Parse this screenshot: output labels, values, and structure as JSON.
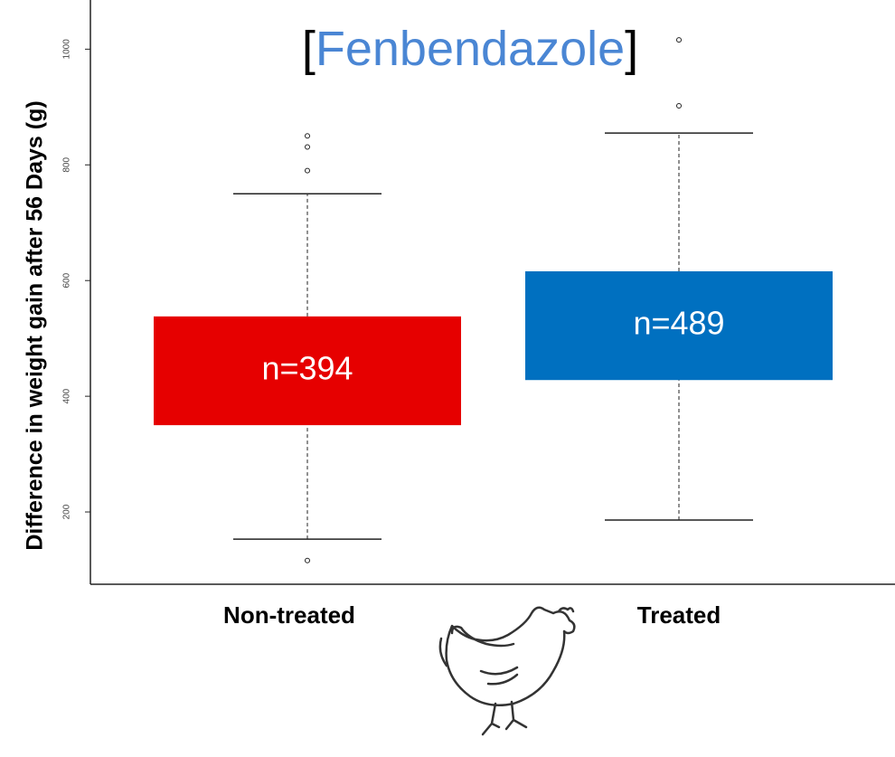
{
  "chart_data": {
    "type": "box",
    "title": "[Fenbendazole]",
    "y_label": "Difference in weight gain after 56 Days (g)",
    "categories": [
      "Non-treated",
      "Treated"
    ],
    "boxes": [
      {
        "whisker_low": 153,
        "q1": 350,
        "q3": 538,
        "whisker_high": 750,
        "outliers": [
          116,
          790,
          831,
          850
        ],
        "label": "n=394",
        "color": "#e60000"
      },
      {
        "whisker_low": 186,
        "q1": 428,
        "q3": 616,
        "whisker_high": 855,
        "outliers": [
          902,
          1016
        ],
        "label": "n=489",
        "color": "#0070c0"
      }
    ],
    "ylim": [
      75,
      1085
    ],
    "yticks": [
      200,
      400,
      600,
      800,
      1000
    ]
  }
}
